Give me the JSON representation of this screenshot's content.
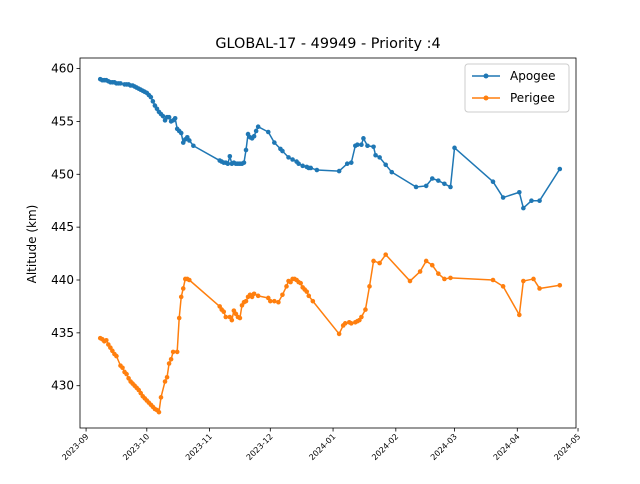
{
  "chart_data": {
    "type": "line",
    "title": "GLOBAL-17 - 49949 - Priority :4",
    "xlabel": "",
    "ylabel": "Altitude (km)",
    "xlim": [
      "2023-08-29",
      "2024-04-30"
    ],
    "ylim": [
      426,
      461
    ],
    "x_ticks": [
      "2023-09",
      "2023-10",
      "2023-11",
      "2023-12",
      "2024-01",
      "2024-02",
      "2024-03",
      "2024-04",
      "2024-05"
    ],
    "y_ticks": [
      430,
      435,
      440,
      445,
      450,
      455,
      460
    ],
    "grid": false,
    "legend_position": "top-right",
    "series": [
      {
        "name": "Apogee",
        "color": "#1f77b4",
        "points": [
          [
            "2023-09-08",
            459.0
          ],
          [
            "2023-09-09",
            458.9
          ],
          [
            "2023-09-10",
            458.9
          ],
          [
            "2023-09-11",
            458.9
          ],
          [
            "2023-09-12",
            458.8
          ],
          [
            "2023-09-13",
            458.7
          ],
          [
            "2023-09-14",
            458.7
          ],
          [
            "2023-09-15",
            458.7
          ],
          [
            "2023-09-16",
            458.6
          ],
          [
            "2023-09-17",
            458.6
          ],
          [
            "2023-09-18",
            458.6
          ],
          [
            "2023-09-20",
            458.5
          ],
          [
            "2023-09-21",
            458.5
          ],
          [
            "2023-09-22",
            458.5
          ],
          [
            "2023-09-23",
            458.4
          ],
          [
            "2023-09-24",
            458.4
          ],
          [
            "2023-09-25",
            458.3
          ],
          [
            "2023-09-26",
            458.2
          ],
          [
            "2023-09-27",
            458.1
          ],
          [
            "2023-09-28",
            458.0
          ],
          [
            "2023-09-29",
            457.9
          ],
          [
            "2023-09-30",
            457.8
          ],
          [
            "2023-10-01",
            457.7
          ],
          [
            "2023-10-02",
            457.5
          ],
          [
            "2023-10-03",
            457.3
          ],
          [
            "2023-10-04",
            456.9
          ],
          [
            "2023-10-05",
            456.5
          ],
          [
            "2023-10-06",
            456.2
          ],
          [
            "2023-10-07",
            455.9
          ],
          [
            "2023-10-08",
            455.7
          ],
          [
            "2023-10-09",
            455.5
          ],
          [
            "2023-10-10",
            455.1
          ],
          [
            "2023-10-11",
            455.4
          ],
          [
            "2023-10-12",
            455.4
          ],
          [
            "2023-10-13",
            455.0
          ],
          [
            "2023-10-14",
            455.1
          ],
          [
            "2023-10-15",
            455.3
          ],
          [
            "2023-10-16",
            454.3
          ],
          [
            "2023-10-17",
            454.1
          ],
          [
            "2023-10-18",
            453.9
          ],
          [
            "2023-10-19",
            453.0
          ],
          [
            "2023-10-20",
            453.3
          ],
          [
            "2023-10-21",
            453.5
          ],
          [
            "2023-10-22",
            453.2
          ],
          [
            "2023-10-24",
            452.7
          ],
          [
            "2023-11-06",
            451.3
          ],
          [
            "2023-11-07",
            451.2
          ],
          [
            "2023-11-08",
            451.1
          ],
          [
            "2023-11-09",
            451.1
          ],
          [
            "2023-11-10",
            451.0
          ],
          [
            "2023-11-11",
            451.7
          ],
          [
            "2023-11-12",
            451.0
          ],
          [
            "2023-11-13",
            451.1
          ],
          [
            "2023-11-14",
            451.0
          ],
          [
            "2023-11-15",
            451.0
          ],
          [
            "2023-11-16",
            451.0
          ],
          [
            "2023-11-17",
            451.0
          ],
          [
            "2023-11-18",
            451.1
          ],
          [
            "2023-11-19",
            452.3
          ],
          [
            "2023-11-20",
            453.8
          ],
          [
            "2023-11-21",
            453.5
          ],
          [
            "2023-11-22",
            453.4
          ],
          [
            "2023-11-23",
            453.6
          ],
          [
            "2023-11-24",
            454.1
          ],
          [
            "2023-11-25",
            454.5
          ],
          [
            "2023-11-30",
            454.0
          ],
          [
            "2023-12-03",
            453.0
          ],
          [
            "2023-12-06",
            452.4
          ],
          [
            "2023-12-07",
            452.2
          ],
          [
            "2023-12-10",
            451.6
          ],
          [
            "2023-12-12",
            451.4
          ],
          [
            "2023-12-14",
            451.2
          ],
          [
            "2023-12-15",
            451.0
          ],
          [
            "2023-12-17",
            450.8
          ],
          [
            "2023-12-19",
            450.7
          ],
          [
            "2023-12-20",
            450.6
          ],
          [
            "2023-12-21",
            450.6
          ],
          [
            "2023-12-24",
            450.4
          ],
          [
            "2024-01-04",
            450.3
          ],
          [
            "2024-01-08",
            451.0
          ],
          [
            "2024-01-10",
            451.1
          ],
          [
            "2024-01-12",
            452.7
          ],
          [
            "2024-01-13",
            452.8
          ],
          [
            "2024-01-15",
            452.8
          ],
          [
            "2024-01-16",
            453.4
          ],
          [
            "2024-01-18",
            452.7
          ],
          [
            "2024-01-21",
            452.6
          ],
          [
            "2024-01-22",
            451.8
          ],
          [
            "2024-01-24",
            451.6
          ],
          [
            "2024-01-27",
            450.9
          ],
          [
            "2024-01-30",
            450.2
          ],
          [
            "2024-02-11",
            448.8
          ],
          [
            "2024-02-16",
            448.9
          ],
          [
            "2024-02-19",
            449.6
          ],
          [
            "2024-02-22",
            449.4
          ],
          [
            "2024-02-25",
            449.1
          ],
          [
            "2024-02-28",
            448.8
          ],
          [
            "2024-03-01",
            452.5
          ],
          [
            "2024-03-20",
            449.3
          ],
          [
            "2024-03-25",
            447.8
          ],
          [
            "2024-04-02",
            448.3
          ],
          [
            "2024-04-04",
            446.8
          ],
          [
            "2024-04-08",
            447.5
          ],
          [
            "2024-04-12",
            447.5
          ],
          [
            "2024-04-22",
            450.5
          ]
        ]
      },
      {
        "name": "Perigee",
        "color": "#ff7f0e",
        "points": [
          [
            "2023-09-08",
            434.5
          ],
          [
            "2023-09-09",
            434.4
          ],
          [
            "2023-09-10",
            434.2
          ],
          [
            "2023-09-11",
            434.3
          ],
          [
            "2023-09-12",
            433.9
          ],
          [
            "2023-09-13",
            433.6
          ],
          [
            "2023-09-14",
            433.3
          ],
          [
            "2023-09-15",
            433.0
          ],
          [
            "2023-09-16",
            432.8
          ],
          [
            "2023-09-18",
            431.9
          ],
          [
            "2023-09-19",
            431.7
          ],
          [
            "2023-09-20",
            431.3
          ],
          [
            "2023-09-21",
            431.1
          ],
          [
            "2023-09-22",
            430.7
          ],
          [
            "2023-09-23",
            430.4
          ],
          [
            "2023-09-24",
            430.2
          ],
          [
            "2023-09-25",
            430.0
          ],
          [
            "2023-09-26",
            429.8
          ],
          [
            "2023-09-27",
            429.6
          ],
          [
            "2023-09-28",
            429.3
          ],
          [
            "2023-09-29",
            429.0
          ],
          [
            "2023-09-30",
            428.8
          ],
          [
            "2023-10-01",
            428.6
          ],
          [
            "2023-10-02",
            428.4
          ],
          [
            "2023-10-03",
            428.2
          ],
          [
            "2023-10-04",
            428.0
          ],
          [
            "2023-10-05",
            427.8
          ],
          [
            "2023-10-06",
            427.7
          ],
          [
            "2023-10-07",
            427.5
          ],
          [
            "2023-10-08",
            428.9
          ],
          [
            "2023-10-10",
            430.4
          ],
          [
            "2023-10-11",
            430.8
          ],
          [
            "2023-10-12",
            432.1
          ],
          [
            "2023-10-13",
            432.5
          ],
          [
            "2023-10-14",
            433.2
          ],
          [
            "2023-10-16",
            433.2
          ],
          [
            "2023-10-17",
            436.4
          ],
          [
            "2023-10-18",
            438.4
          ],
          [
            "2023-10-19",
            439.2
          ],
          [
            "2023-10-20",
            440.1
          ],
          [
            "2023-10-21",
            440.1
          ],
          [
            "2023-10-22",
            440.0
          ],
          [
            "2023-11-06",
            437.5
          ],
          [
            "2023-11-07",
            437.2
          ],
          [
            "2023-11-08",
            437.0
          ],
          [
            "2023-11-09",
            436.5
          ],
          [
            "2023-11-11",
            436.5
          ],
          [
            "2023-11-12",
            436.2
          ],
          [
            "2023-11-13",
            437.1
          ],
          [
            "2023-11-14",
            436.8
          ],
          [
            "2023-11-15",
            436.5
          ],
          [
            "2023-11-16",
            436.4
          ],
          [
            "2023-11-17",
            437.6
          ],
          [
            "2023-11-18",
            437.9
          ],
          [
            "2023-11-19",
            438.0
          ],
          [
            "2023-11-20",
            438.4
          ],
          [
            "2023-11-21",
            438.6
          ],
          [
            "2023-11-22",
            438.4
          ],
          [
            "2023-11-23",
            438.7
          ],
          [
            "2023-11-25",
            438.5
          ],
          [
            "2023-11-30",
            438.3
          ],
          [
            "2023-12-01",
            438.0
          ],
          [
            "2023-12-03",
            438.0
          ],
          [
            "2023-12-05",
            437.9
          ],
          [
            "2023-12-07",
            438.6
          ],
          [
            "2023-12-09",
            439.4
          ],
          [
            "2023-12-10",
            439.9
          ],
          [
            "2023-12-11",
            439.8
          ],
          [
            "2023-12-12",
            440.1
          ],
          [
            "2023-12-13",
            440.1
          ],
          [
            "2023-12-14",
            440.0
          ],
          [
            "2023-12-15",
            439.8
          ],
          [
            "2023-12-16",
            439.7
          ],
          [
            "2023-12-17",
            439.3
          ],
          [
            "2023-12-18",
            439.1
          ],
          [
            "2023-12-19",
            438.9
          ],
          [
            "2023-12-20",
            438.5
          ],
          [
            "2023-12-22",
            438.0
          ],
          [
            "2024-01-04",
            434.9
          ],
          [
            "2024-01-06",
            435.7
          ],
          [
            "2024-01-07",
            435.9
          ],
          [
            "2024-01-09",
            436.0
          ],
          [
            "2024-01-10",
            435.9
          ],
          [
            "2024-01-12",
            436.0
          ],
          [
            "2024-01-13",
            436.1
          ],
          [
            "2024-01-14",
            436.2
          ],
          [
            "2024-01-15",
            436.5
          ],
          [
            "2024-01-17",
            437.2
          ],
          [
            "2024-01-19",
            439.4
          ],
          [
            "2024-01-21",
            441.8
          ],
          [
            "2024-01-24",
            441.6
          ],
          [
            "2024-01-27",
            442.4
          ],
          [
            "2024-02-08",
            439.9
          ],
          [
            "2024-02-13",
            440.8
          ],
          [
            "2024-02-16",
            441.8
          ],
          [
            "2024-02-19",
            441.4
          ],
          [
            "2024-02-22",
            440.6
          ],
          [
            "2024-02-25",
            440.1
          ],
          [
            "2024-02-28",
            440.2
          ],
          [
            "2024-03-20",
            440.0
          ],
          [
            "2024-03-25",
            439.4
          ],
          [
            "2024-04-02",
            436.7
          ],
          [
            "2024-04-04",
            439.9
          ],
          [
            "2024-04-09",
            440.1
          ],
          [
            "2024-04-12",
            439.2
          ],
          [
            "2024-04-22",
            439.5
          ]
        ]
      }
    ]
  }
}
